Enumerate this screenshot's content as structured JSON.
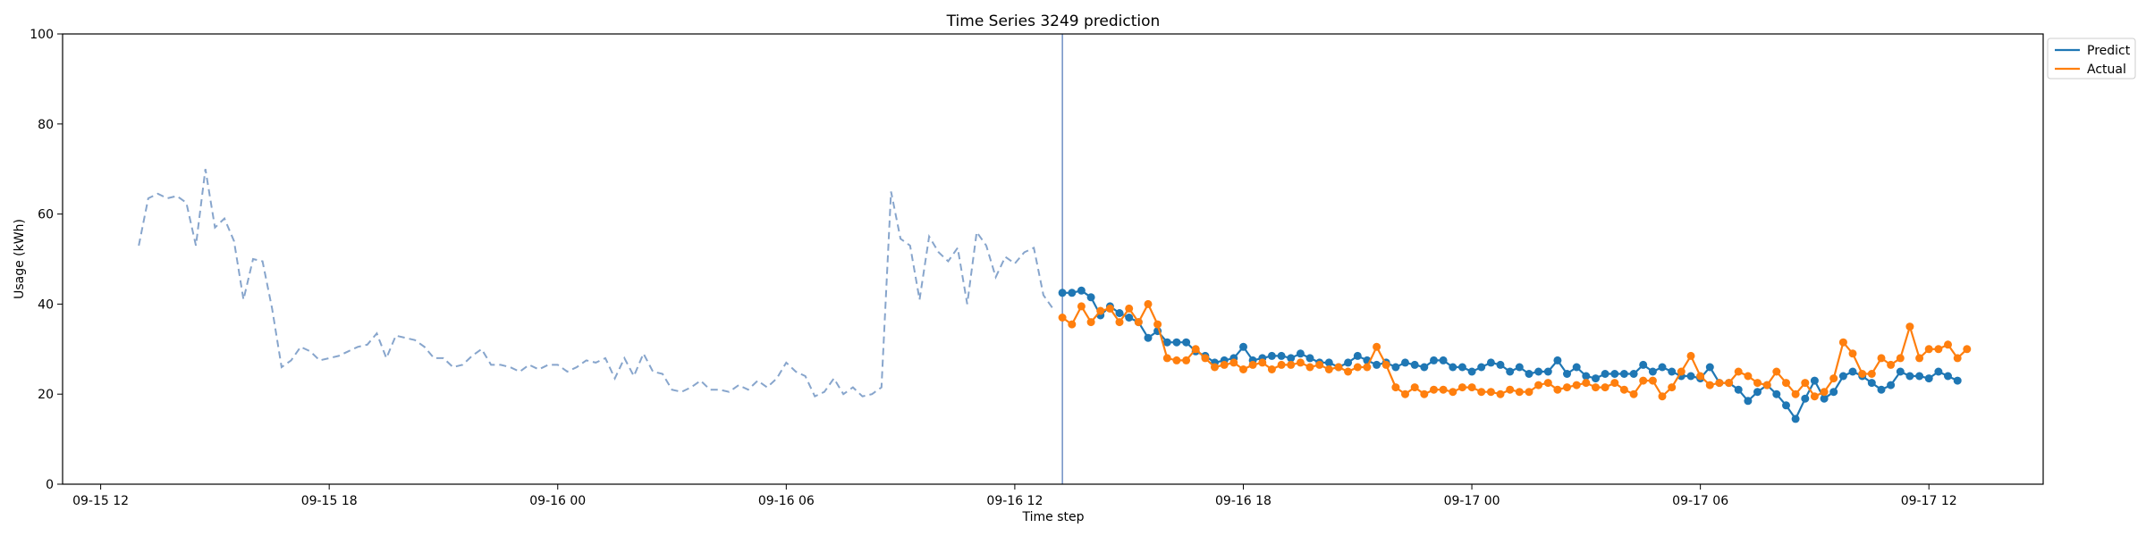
{
  "chart_data": {
    "type": "line",
    "title": "Time Series 3249 prediction",
    "xlabel": "Time step",
    "ylabel": "Usage (kWh)",
    "ylim": [
      0,
      100
    ],
    "yticks": [
      0,
      20,
      40,
      60,
      80,
      100
    ],
    "xlim": [
      "09-15 11:00",
      "09-17 15:00"
    ],
    "xticks": [
      {
        "label": "09-15 12",
        "t": "09-15 12:00"
      },
      {
        "label": "09-15 18",
        "t": "09-15 18:00"
      },
      {
        "label": "09-16 00",
        "t": "09-16 00:00"
      },
      {
        "label": "09-16 06",
        "t": "09-16 06:00"
      },
      {
        "label": "09-16 12",
        "t": "09-16 12:00"
      },
      {
        "label": "09-16 18",
        "t": "09-16 18:00"
      },
      {
        "label": "09-17 00",
        "t": "09-17 00:00"
      },
      {
        "label": "09-17 06",
        "t": "09-17 06:00"
      },
      {
        "label": "09-17 12",
        "t": "09-17 12:00"
      }
    ],
    "grid": false,
    "legend_position": "outside-top-right",
    "divider_time": "09-16 13:15",
    "history": {
      "start": "09-15 13:00",
      "step_minutes": 15,
      "color": "#87a5cc",
      "style": "dashed",
      "values": [
        53,
        63.5,
        64.5,
        63.5,
        64,
        62.5,
        53,
        70,
        57,
        59,
        54,
        41,
        50,
        49.5,
        39,
        26,
        27.5,
        30.5,
        29.5,
        27.5,
        28,
        28.5,
        29.5,
        30.5,
        31,
        33.5,
        28,
        33,
        32.5,
        32,
        30.5,
        28,
        28,
        26,
        26.5,
        28.5,
        30,
        26.5,
        26.5,
        26,
        25,
        26.5,
        25.5,
        26.5,
        26.5,
        25,
        26,
        27.5,
        27,
        28,
        23.5,
        28,
        24,
        29,
        25,
        24.5,
        21,
        20.5,
        21.5,
        23,
        21,
        21,
        20.5,
        22,
        21,
        23,
        21.5,
        23.5,
        27,
        25,
        24,
        19.5,
        20.5,
        23.5,
        20,
        21.5,
        19.5,
        20,
        21.5,
        65,
        54.5,
        53,
        41,
        55,
        51.5,
        49.5,
        52.5,
        40,
        56,
        53,
        46,
        50.5,
        49,
        51.5,
        52.5,
        42,
        39
      ]
    },
    "series": [
      {
        "name": "Predict",
        "color": "#1f77b4",
        "start": "09-16 13:15",
        "step_minutes": 15,
        "values": [
          42.5,
          42.5,
          43,
          41.5,
          37.5,
          39.5,
          38,
          37,
          36,
          32.5,
          34,
          31.5,
          31.5,
          31.5,
          29.5,
          28.5,
          27,
          27.5,
          28,
          30.5,
          27.5,
          28,
          28.5,
          28.5,
          28,
          29,
          28,
          27,
          27,
          26,
          27,
          28.5,
          27.5,
          26.5,
          27,
          26,
          27,
          26.5,
          26,
          27.5,
          27.5,
          26,
          26,
          25,
          26,
          27,
          26.5,
          25,
          26,
          24.5,
          25,
          25,
          27.5,
          24.5,
          26,
          24,
          23.5,
          24.5,
          24.5,
          24.5,
          24.5,
          26.5,
          25,
          26,
          25,
          24,
          24,
          23.5,
          26,
          22.5,
          22.5,
          21,
          18.5,
          20.5,
          22,
          20,
          17.5,
          14.5,
          19,
          23,
          19,
          20.5,
          24,
          25,
          24,
          22.5,
          21,
          22,
          25,
          24,
          24,
          23.5,
          25,
          24,
          23
        ]
      },
      {
        "name": "Actual",
        "color": "#ff7f0e",
        "start": "09-16 13:15",
        "step_minutes": 15,
        "values": [
          37,
          35.5,
          39.5,
          36,
          38.5,
          39,
          36,
          39,
          36,
          40,
          35.5,
          28,
          27.5,
          27.5,
          30,
          28,
          26,
          26.5,
          27,
          25.5,
          26.5,
          27,
          25.5,
          26.5,
          26.5,
          27,
          26,
          26.5,
          25.5,
          26,
          25,
          26,
          26,
          30.5,
          26.5,
          21.5,
          20,
          21.5,
          20,
          21,
          21,
          20.5,
          21.5,
          21.5,
          20.5,
          20.5,
          20,
          21,
          20.5,
          20.5,
          22,
          22.5,
          21,
          21.5,
          22,
          22.5,
          21.5,
          21.5,
          22.5,
          21,
          20,
          23,
          23,
          19.5,
          21.5,
          25,
          28.5,
          24,
          22,
          22.5,
          22.5,
          25,
          24,
          22.5,
          22,
          25,
          22.5,
          20,
          22.5,
          19.5,
          20.5,
          23.5,
          31.5,
          29,
          24.5,
          24.5,
          28,
          26.5,
          28,
          35,
          28,
          30,
          30,
          31,
          28,
          30
        ]
      }
    ]
  }
}
